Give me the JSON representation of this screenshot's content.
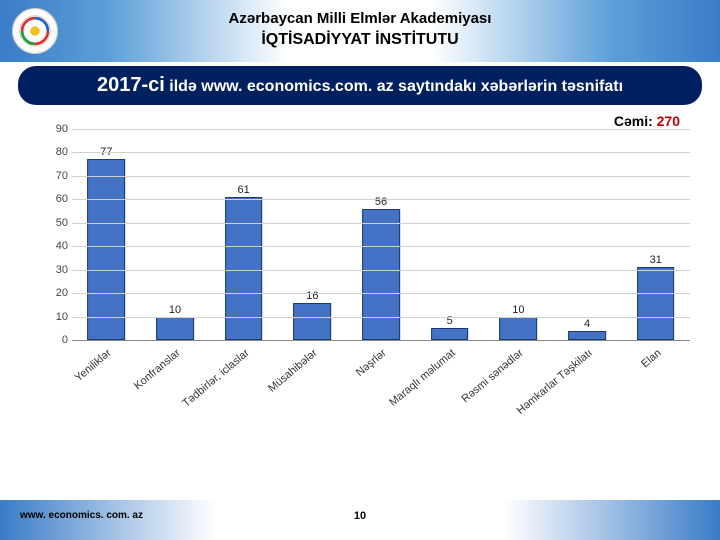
{
  "header": {
    "line1": "Azərbaycan Milli Elmlər Akademiyası",
    "line2": "İQTİSADİYYAT İNSTİTUTU"
  },
  "title": {
    "year": "2017-ci",
    "rest": " ildə www. economics.com. az saytındakı xəbərlərin təsnifatı"
  },
  "total": {
    "label": "Cəmi: ",
    "value": "270",
    "color": "#c00000"
  },
  "chart": {
    "type": "bar",
    "categories": [
      "Yeniliklər",
      "Konfranslar",
      "Tədbirlər, iclaslar",
      "Müsahibələr",
      "Nəşrlər",
      "Maraqlı məlumat",
      "Rəsmi sənədlər",
      "Həmkarlar Təşkilatı",
      "Elan"
    ],
    "values": [
      77,
      10,
      61,
      16,
      56,
      5,
      10,
      4,
      31
    ],
    "bar_fill": "#4473c5",
    "bar_border": "#1b3a6b",
    "bar_width_pct": 55,
    "ylim": [
      0,
      90
    ],
    "ytick_step": 10,
    "grid_color": "#d0d0d0",
    "axis_font_size": 11,
    "value_label_font_size": 11
  },
  "footer": {
    "url": "www. economics. com. az",
    "page": "10"
  }
}
